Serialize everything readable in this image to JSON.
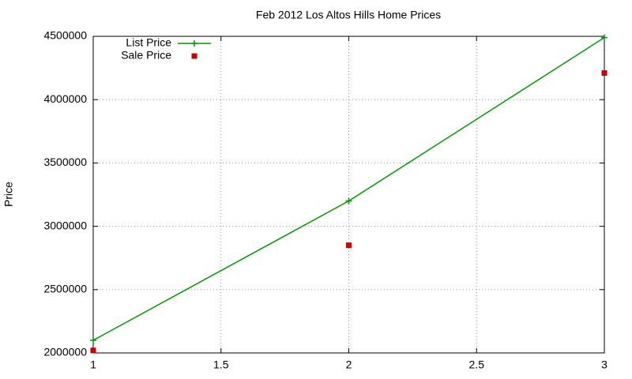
{
  "chart_data": {
    "type": "line",
    "title": "Feb 2012 Los Altos Hills Home Prices",
    "y_label": "Price",
    "x": [
      1,
      2,
      3
    ],
    "series": [
      {
        "name": "List Price",
        "color": "#009900",
        "marker": "plus",
        "line": true,
        "values": [
          2100000,
          3200000,
          4490000
        ]
      },
      {
        "name": "Sale Price",
        "color": "#cc0000",
        "marker": "square",
        "line": false,
        "values": [
          2020000,
          2850000,
          4210000
        ]
      }
    ],
    "xlim": [
      1,
      3
    ],
    "xticks": [
      1,
      1.5,
      2,
      2.5,
      3
    ],
    "ylim": [
      2000000,
      4500000
    ],
    "yticks": [
      2000000,
      2500000,
      3000000,
      3500000,
      4000000,
      4500000
    ],
    "grid": true,
    "legend": "top-left"
  }
}
